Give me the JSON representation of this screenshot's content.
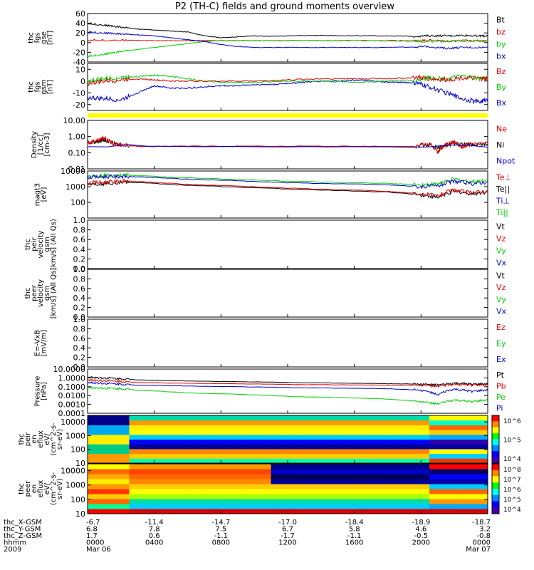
{
  "title": "P2 (TH-C) fields and ground moments overview",
  "colors": {
    "black": "#000000",
    "red": "#dd0000",
    "green": "#00cc00",
    "blue": "#0000cc",
    "yellow": "#ffff00",
    "axis": "#000000"
  },
  "chart_data": [
    {
      "type": "line",
      "name": "fgs_gse",
      "ylabel": [
        "thc",
        "fgs",
        "gse",
        "[nT]"
      ],
      "ylim": [
        -40,
        60
      ],
      "yticks": [
        "60",
        "40",
        "20",
        "0",
        "-20",
        "-40"
      ],
      "legend": [
        {
          "label": "Bt",
          "color": "black"
        },
        {
          "label": "bz",
          "color": "red"
        },
        {
          "label": "by",
          "color": "green"
        },
        {
          "label": "bx",
          "color": "blue"
        }
      ],
      "series": [
        {
          "name": "Bt",
          "color": "black",
          "x": [
            0,
            1,
            2,
            3,
            4,
            5,
            6,
            7,
            8,
            9,
            10,
            11,
            12,
            14,
            16,
            18,
            19.5,
            20.5,
            21.5,
            22.5,
            23.5,
            24
          ],
          "y": [
            40,
            36,
            32,
            28,
            26,
            24,
            22,
            14,
            10,
            12,
            14,
            13,
            14,
            15,
            14,
            14,
            13,
            14,
            14,
            15,
            14,
            14
          ]
        },
        {
          "name": "bz",
          "color": "red",
          "x": [
            0,
            2,
            4,
            6,
            8,
            10,
            12,
            16,
            19.5,
            20.5,
            21.5,
            22.5,
            24
          ],
          "y": [
            5,
            5,
            4,
            4,
            4,
            4,
            4,
            4,
            4,
            5,
            3,
            4,
            4
          ]
        },
        {
          "name": "by",
          "color": "green",
          "x": [
            0,
            1,
            2,
            3,
            4,
            5,
            6,
            7,
            8,
            9,
            10,
            12,
            16,
            19.5,
            20.5,
            21.5,
            22.5,
            24
          ],
          "y": [
            -28,
            -24,
            -18,
            -14,
            -10,
            -6,
            -2,
            2,
            4,
            4,
            4,
            4,
            4,
            3,
            2,
            3,
            4,
            3
          ]
        },
        {
          "name": "bx",
          "color": "blue",
          "x": [
            0,
            1,
            2,
            3,
            4,
            5,
            6,
            7,
            8,
            9,
            10,
            12,
            14,
            16,
            18,
            19.5,
            20.5,
            21.5,
            22.5,
            24
          ],
          "y": [
            22,
            20,
            18,
            16,
            14,
            10,
            6,
            2,
            -4,
            -8,
            -10,
            -10,
            -10,
            -10,
            -10,
            -9,
            -8,
            -12,
            -10,
            -10
          ]
        }
      ]
    },
    {
      "type": "line",
      "name": "fgs_gsm",
      "ylabel": [
        "thc",
        "fgs",
        "gsm",
        "[nT]"
      ],
      "ylim": [
        -25,
        15
      ],
      "yticks": [
        "10",
        "0",
        "-10",
        "-20"
      ],
      "legend": [
        {
          "label": "Bz",
          "color": "red"
        },
        {
          "label": "By",
          "color": "green"
        },
        {
          "label": "Bx",
          "color": "blue"
        }
      ],
      "series": [
        {
          "name": "Bx",
          "color": "blue",
          "x": [
            0,
            1,
            2,
            3,
            4,
            5,
            6,
            7,
            8,
            9,
            10,
            11,
            12,
            13,
            14,
            15,
            16,
            17,
            18,
            19,
            19.8,
            20.5,
            21.5,
            22.5,
            23.5,
            24
          ],
          "y": [
            -14,
            -15,
            -16,
            -10,
            -4,
            -6,
            -6,
            -5,
            -4,
            -4,
            -3,
            -3,
            -2,
            -1,
            0,
            0,
            1,
            0,
            -1,
            -1,
            -2,
            -5,
            -10,
            -15,
            -18,
            -15
          ]
        },
        {
          "name": "By",
          "color": "green",
          "x": [
            0,
            1,
            2,
            3,
            4,
            5,
            6,
            7,
            8,
            10,
            12,
            14,
            16,
            18,
            19.8,
            20.5,
            21.5,
            22.5,
            23.5,
            24
          ],
          "y": [
            0,
            2,
            3,
            4,
            5,
            4,
            2,
            0,
            -1,
            -1,
            0,
            0,
            -1,
            0,
            1,
            3,
            2,
            4,
            2,
            3
          ]
        },
        {
          "name": "Bz",
          "color": "red",
          "x": [
            0,
            1,
            2,
            3,
            4,
            5,
            6,
            8,
            10,
            12,
            14,
            16,
            18,
            19.8,
            20.5,
            21.5,
            22.5,
            23.5,
            24
          ],
          "y": [
            -2,
            0,
            1,
            2,
            1,
            0,
            0,
            0,
            0,
            1,
            2,
            2,
            2,
            3,
            2,
            1,
            3,
            2,
            2
          ]
        }
      ]
    },
    {
      "type": "line",
      "name": "density",
      "ylabel": [
        "Density",
        "[1/cc]",
        "[cm-3]"
      ],
      "ylim": [
        0.01,
        10
      ],
      "log": true,
      "yticks": [
        "10.00",
        "1.00",
        "0.10",
        "0.01"
      ],
      "legend": [
        {
          "label": "Ne",
          "color": "red"
        },
        {
          "label": "Ni",
          "color": "black"
        },
        {
          "label": "Npot",
          "color": "blue"
        }
      ],
      "series": [
        {
          "name": "Ni",
          "color": "black",
          "x": [
            0,
            0.5,
            1,
            1.5,
            2,
            3,
            6,
            12,
            19.5,
            20.5,
            21,
            22,
            23,
            24
          ],
          "y": [
            0.4,
            0.5,
            0.6,
            0.4,
            0.3,
            0.25,
            0.25,
            0.25,
            0.25,
            0.3,
            0.2,
            0.35,
            0.3,
            0.35
          ]
        },
        {
          "name": "Ne",
          "color": "red",
          "x": [
            0,
            0.5,
            1,
            1.5,
            2,
            3,
            6,
            12,
            19.5,
            20.5,
            21,
            21.5,
            22,
            22.5,
            23,
            24
          ],
          "y": [
            0.35,
            0.6,
            0.8,
            0.35,
            0.3,
            0.25,
            0.25,
            0.25,
            0.25,
            0.35,
            0.1,
            0.3,
            0.45,
            0.2,
            0.4,
            0.4
          ]
        },
        {
          "name": "Npot",
          "color": "blue",
          "x": [
            0,
            24
          ],
          "y": [
            0.25,
            0.22
          ]
        }
      ]
    },
    {
      "type": "line",
      "name": "temperature",
      "ylabel": [
        "magt3",
        "[eV]"
      ],
      "ylim": [
        10,
        10000
      ],
      "log": true,
      "yticks": [
        "10000",
        "1000",
        "100"
      ],
      "legend": [
        {
          "label": "Te⊥",
          "color": "red"
        },
        {
          "label": "Te||",
          "color": "black"
        },
        {
          "label": "Ti⊥",
          "color": "blue"
        },
        {
          "label": "Ti||",
          "color": "green"
        }
      ],
      "series": [
        {
          "name": "Ti||",
          "color": "green",
          "x": [
            0,
            1,
            2,
            3,
            6,
            12,
            18,
            20,
            21,
            22,
            23,
            24
          ],
          "y": [
            5000,
            5200,
            5500,
            5000,
            3600,
            2200,
            1600,
            1300,
            1500,
            3000,
            2000,
            2600
          ]
        },
        {
          "name": "Ti⊥",
          "color": "blue",
          "x": [
            0,
            1,
            2,
            3,
            6,
            12,
            18,
            20,
            21,
            22,
            23,
            24
          ],
          "y": [
            4000,
            4300,
            4600,
            4200,
            3000,
            1800,
            1300,
            1000,
            1100,
            2200,
            1500,
            2000
          ]
        },
        {
          "name": "Te||",
          "color": "black",
          "x": [
            0,
            1,
            2,
            3,
            6,
            12,
            18,
            20,
            21,
            22,
            23,
            24
          ],
          "y": [
            1500,
            1600,
            2000,
            1800,
            1200,
            700,
            450,
            300,
            200,
            500,
            350,
            450
          ]
        },
        {
          "name": "Te⊥",
          "color": "red",
          "x": [
            0,
            1,
            2,
            3,
            6,
            12,
            18,
            20,
            21,
            22,
            23,
            24
          ],
          "y": [
            1800,
            1900,
            2300,
            2100,
            1400,
            800,
            500,
            350,
            250,
            600,
            400,
            550
          ]
        }
      ]
    },
    {
      "type": "line",
      "name": "peir_velocity",
      "ylabel": [
        "thc",
        "peir",
        "velocity",
        "gsm",
        "[km/s] (All Qs)"
      ],
      "ylim": [
        0,
        1
      ],
      "yticks": [
        "1.0",
        "0.8",
        "0.6",
        "0.4",
        "0.2",
        "0.0"
      ],
      "legend": [
        {
          "label": "Vt",
          "color": "black"
        },
        {
          "label": "Vz",
          "color": "red"
        },
        {
          "label": "Vy",
          "color": "green"
        },
        {
          "label": "Vx",
          "color": "blue"
        }
      ],
      "series": []
    },
    {
      "type": "line",
      "name": "peer_velocity",
      "ylabel": [
        "thc",
        "peer",
        "velocity",
        "gsm",
        "[km/s] (All Qs)"
      ],
      "ylim": [
        0,
        1
      ],
      "yticks": [
        "1.0",
        "0.8",
        "0.6",
        "0.4",
        "0.2",
        "0.0"
      ],
      "legend": [
        {
          "label": "Vt",
          "color": "black"
        },
        {
          "label": "Vz",
          "color": "red"
        },
        {
          "label": "Vy",
          "color": "green"
        },
        {
          "label": "Vx",
          "color": "blue"
        }
      ],
      "series": []
    },
    {
      "type": "line",
      "name": "efield",
      "ylabel": [
        "E=-VxB",
        "[mV/m]"
      ],
      "ylim": [
        0,
        1
      ],
      "yticks": [
        "1.0",
        "0.8",
        "0.6",
        "0.4",
        "0.2",
        "0.0"
      ],
      "legend": [
        {
          "label": "Ez",
          "color": "red"
        },
        {
          "label": "Ey",
          "color": "green"
        },
        {
          "label": "Ex",
          "color": "blue"
        }
      ],
      "series": []
    },
    {
      "type": "line",
      "name": "pressure",
      "ylabel": [
        "Pressure",
        "[nPa]"
      ],
      "ylim": [
        0.0001,
        10
      ],
      "log": true,
      "yticks": [
        "10.0000",
        "1.0000",
        "0.1000",
        "0.0100",
        "0.0010",
        "0.0001"
      ],
      "legend": [
        {
          "label": "Pt",
          "color": "black"
        },
        {
          "label": "Pb",
          "color": "red"
        },
        {
          "label": "Pe",
          "color": "green"
        },
        {
          "label": "Pi",
          "color": "blue"
        }
      ],
      "series": [
        {
          "name": "Pt",
          "color": "black",
          "x": [
            0,
            1,
            2,
            3,
            6,
            12,
            18,
            20,
            21,
            22,
            23,
            24
          ],
          "y": [
            1.2,
            1.0,
            0.8,
            0.6,
            0.45,
            0.3,
            0.22,
            0.2,
            0.15,
            0.25,
            0.2,
            0.2
          ]
        },
        {
          "name": "Pb",
          "color": "red",
          "x": [
            0,
            1,
            2,
            3,
            6,
            12,
            18,
            20,
            21,
            22,
            23,
            24
          ],
          "y": [
            0.6,
            0.5,
            0.4,
            0.3,
            0.25,
            0.18,
            0.15,
            0.15,
            0.1,
            0.18,
            0.15,
            0.16
          ]
        },
        {
          "name": "Pi",
          "color": "blue",
          "x": [
            0,
            1,
            2,
            3,
            6,
            12,
            18,
            20,
            21,
            22,
            23,
            24
          ],
          "y": [
            0.3,
            0.25,
            0.2,
            0.15,
            0.12,
            0.08,
            0.06,
            0.04,
            0.01,
            0.05,
            0.03,
            0.04
          ]
        },
        {
          "name": "Pe",
          "color": "green",
          "x": [
            0,
            1,
            2,
            3,
            6,
            12,
            18,
            20,
            21,
            22,
            23,
            24
          ],
          "y": [
            0.08,
            0.07,
            0.06,
            0.04,
            0.02,
            0.008,
            0.004,
            0.002,
            0.001,
            0.003,
            0.002,
            0.003
          ]
        }
      ]
    },
    {
      "type": "heatmap",
      "name": "peir_eflux",
      "ylabel": [
        "thc",
        "peir",
        "en",
        "eflux",
        "eV/",
        "(cm^2-s-",
        "sr-eV)"
      ],
      "ylim": [
        10,
        30000
      ],
      "log": true,
      "yticks": [
        "10000",
        "1000",
        "100",
        "10"
      ],
      "colorbar_ticks": [
        "10^6",
        "10^5",
        "10^4"
      ]
    },
    {
      "type": "heatmap",
      "name": "peer_eflux",
      "ylabel": [
        "thc",
        "peer",
        "en",
        "eflux",
        "eV/",
        "(cm^2-s-",
        "sr-eV)"
      ],
      "ylim": [
        10,
        30000
      ],
      "log": true,
      "yticks": [
        "10000",
        "1000",
        "100",
        "10"
      ],
      "colorbar_ticks": [
        "10^8",
        "10^7",
        "10^6",
        "10^5",
        "10^4"
      ]
    }
  ],
  "xaxis": {
    "tick_hours": [
      0,
      4,
      8,
      12,
      16,
      20,
      24
    ],
    "rows": [
      {
        "label": "thc_X-GSM",
        "values": [
          "-6.7",
          "-11.4",
          "-14.7",
          "-17.0",
          "-18.4",
          "-18.9",
          "-18.7"
        ]
      },
      {
        "label": "thc_Y-GSM",
        "values": [
          "6.8",
          "7.8",
          "7.5",
          "6.7",
          "5.8",
          "4.6",
          "3.2"
        ]
      },
      {
        "label": "thc_Z-GSM",
        "values": [
          "1.7",
          "0.6",
          "-1.1",
          "-1.7",
          "-1.1",
          "-0.5",
          "-0.8"
        ]
      },
      {
        "label": "hhmm",
        "values": [
          "0000",
          "0400",
          "0800",
          "1200",
          "1600",
          "2000",
          "0000"
        ]
      },
      {
        "label": "2009",
        "values": [
          "Mar 06",
          "",
          "",
          "",
          "",
          "",
          "Mar 07"
        ]
      }
    ]
  }
}
